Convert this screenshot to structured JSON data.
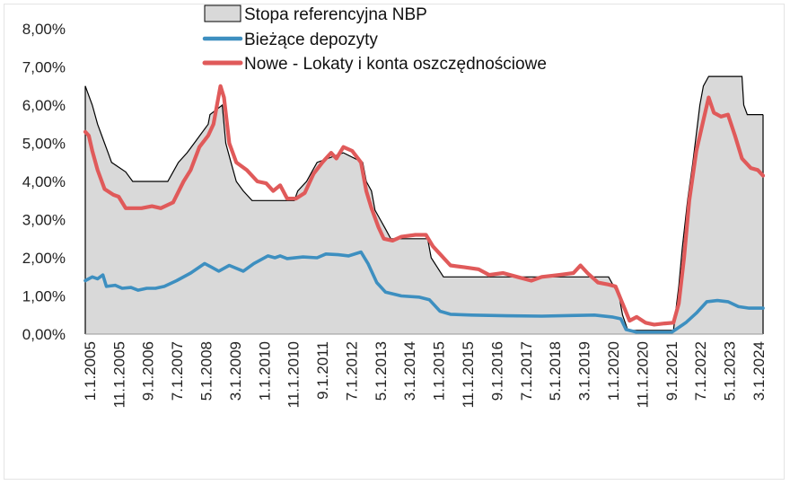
{
  "chart_data": {
    "type": "area",
    "title": "",
    "xlabel": "",
    "ylabel": "",
    "ylim": [
      0,
      8
    ],
    "y_ticks": [
      "0,00%",
      "1,00%",
      "2,00%",
      "3,00%",
      "4,00%",
      "5,00%",
      "6,00%",
      "7,00%",
      "8,00%"
    ],
    "x_tick_labels": [
      "1.1.2005",
      "11.1.2005",
      "9.1.2006",
      "7.1.2007",
      "5.1.2008",
      "3.1.2009",
      "1.1.2010",
      "11.1.2010",
      "9.1.2011",
      "7.1.2012",
      "5.1.2013",
      "3.1.2014",
      "1.1.2015",
      "11.1.2015",
      "9.1.2016",
      "7.1.2017",
      "5.1.2018",
      "3.1.2019",
      "1.1.2020",
      "11.1.2020",
      "9.1.2021",
      "7.1.2022",
      "5.1.2023",
      "3.1.2024"
    ],
    "grid": false,
    "legend_position": "top",
    "series": [
      {
        "name": "Stopa referencyjna NBP",
        "style": "area",
        "fill_color": "#d9d9d9",
        "line_color": "#000000",
        "points": [
          [
            2005.0,
            6.5
          ],
          [
            2005.2,
            6.0
          ],
          [
            2005.35,
            5.5
          ],
          [
            2005.55,
            5.0
          ],
          [
            2005.65,
            4.75
          ],
          [
            2005.75,
            4.5
          ],
          [
            2006.15,
            4.25
          ],
          [
            2006.35,
            4.0
          ],
          [
            2007.35,
            4.0
          ],
          [
            2007.5,
            4.25
          ],
          [
            2007.65,
            4.5
          ],
          [
            2007.9,
            4.75
          ],
          [
            2008.1,
            5.0
          ],
          [
            2008.3,
            5.25
          ],
          [
            2008.5,
            5.5
          ],
          [
            2008.55,
            5.75
          ],
          [
            2008.9,
            6.0
          ],
          [
            2009.0,
            5.0
          ],
          [
            2009.15,
            4.5
          ],
          [
            2009.3,
            4.0
          ],
          [
            2009.5,
            3.75
          ],
          [
            2009.75,
            3.5
          ],
          [
            2010.95,
            3.5
          ],
          [
            2011.05,
            3.75
          ],
          [
            2011.3,
            4.0
          ],
          [
            2011.45,
            4.25
          ],
          [
            2011.6,
            4.5
          ],
          [
            2012.35,
            4.75
          ],
          [
            2012.9,
            4.5
          ],
          [
            2013.0,
            4.0
          ],
          [
            2013.15,
            3.75
          ],
          [
            2013.25,
            3.25
          ],
          [
            2013.4,
            3.0
          ],
          [
            2013.55,
            2.75
          ],
          [
            2013.7,
            2.5
          ],
          [
            2014.75,
            2.5
          ],
          [
            2014.85,
            2.0
          ],
          [
            2015.2,
            1.5
          ],
          [
            2019.9,
            1.5
          ],
          [
            2020.2,
            1.0
          ],
          [
            2020.3,
            0.5
          ],
          [
            2020.45,
            0.1
          ],
          [
            2021.75,
            0.1
          ],
          [
            2021.8,
            0.5
          ],
          [
            2021.9,
            1.25
          ],
          [
            2022.0,
            2.25
          ],
          [
            2022.15,
            3.5
          ],
          [
            2022.3,
            4.5
          ],
          [
            2022.4,
            5.25
          ],
          [
            2022.5,
            6.0
          ],
          [
            2022.6,
            6.5
          ],
          [
            2022.75,
            6.75
          ],
          [
            2023.7,
            6.75
          ],
          [
            2023.75,
            6.0
          ],
          [
            2023.85,
            5.75
          ],
          [
            2024.3,
            5.75
          ]
        ]
      },
      {
        "name": "Bieżące depozyty",
        "style": "line",
        "color": "#3d8fc0",
        "points": [
          [
            2005.0,
            1.4
          ],
          [
            2005.2,
            1.5
          ],
          [
            2005.35,
            1.45
          ],
          [
            2005.5,
            1.55
          ],
          [
            2005.6,
            1.25
          ],
          [
            2005.85,
            1.28
          ],
          [
            2006.05,
            1.2
          ],
          [
            2006.3,
            1.22
          ],
          [
            2006.5,
            1.15
          ],
          [
            2006.75,
            1.2
          ],
          [
            2007.0,
            1.2
          ],
          [
            2007.25,
            1.25
          ],
          [
            2007.6,
            1.4
          ],
          [
            2008.0,
            1.6
          ],
          [
            2008.4,
            1.85
          ],
          [
            2008.6,
            1.75
          ],
          [
            2008.8,
            1.65
          ],
          [
            2009.1,
            1.8
          ],
          [
            2009.5,
            1.65
          ],
          [
            2009.8,
            1.85
          ],
          [
            2010.2,
            2.05
          ],
          [
            2010.4,
            2.0
          ],
          [
            2010.55,
            2.05
          ],
          [
            2010.75,
            1.98
          ],
          [
            2011.2,
            2.02
          ],
          [
            2011.6,
            2.0
          ],
          [
            2011.85,
            2.1
          ],
          [
            2012.2,
            2.08
          ],
          [
            2012.5,
            2.05
          ],
          [
            2012.85,
            2.15
          ],
          [
            2013.05,
            1.85
          ],
          [
            2013.3,
            1.35
          ],
          [
            2013.55,
            1.1
          ],
          [
            2014.0,
            1.0
          ],
          [
            2014.5,
            0.97
          ],
          [
            2014.8,
            0.9
          ],
          [
            2015.1,
            0.6
          ],
          [
            2015.4,
            0.52
          ],
          [
            2016.0,
            0.5
          ],
          [
            2017.0,
            0.48
          ],
          [
            2018.0,
            0.47
          ],
          [
            2019.0,
            0.49
          ],
          [
            2019.5,
            0.5
          ],
          [
            2020.0,
            0.45
          ],
          [
            2020.25,
            0.4
          ],
          [
            2020.4,
            0.12
          ],
          [
            2020.7,
            0.05
          ],
          [
            2021.7,
            0.05
          ],
          [
            2022.1,
            0.3
          ],
          [
            2022.4,
            0.55
          ],
          [
            2022.7,
            0.85
          ],
          [
            2023.0,
            0.88
          ],
          [
            2023.3,
            0.85
          ],
          [
            2023.6,
            0.72
          ],
          [
            2023.9,
            0.68
          ],
          [
            2024.3,
            0.68
          ]
        ]
      },
      {
        "name": "Nowe - Lokaty i konta oszczędnościowe",
        "style": "line",
        "color": "#e05a5a",
        "points": [
          [
            2005.0,
            5.3
          ],
          [
            2005.1,
            5.2
          ],
          [
            2005.2,
            4.8
          ],
          [
            2005.35,
            4.3
          ],
          [
            2005.55,
            3.8
          ],
          [
            2005.8,
            3.65
          ],
          [
            2005.95,
            3.6
          ],
          [
            2006.15,
            3.3
          ],
          [
            2006.6,
            3.3
          ],
          [
            2006.9,
            3.35
          ],
          [
            2007.15,
            3.3
          ],
          [
            2007.5,
            3.45
          ],
          [
            2007.8,
            4.0
          ],
          [
            2008.0,
            4.3
          ],
          [
            2008.25,
            4.9
          ],
          [
            2008.5,
            5.2
          ],
          [
            2008.65,
            5.5
          ],
          [
            2008.85,
            6.5
          ],
          [
            2008.95,
            6.2
          ],
          [
            2009.1,
            5.0
          ],
          [
            2009.3,
            4.5
          ],
          [
            2009.6,
            4.3
          ],
          [
            2009.9,
            4.0
          ],
          [
            2010.15,
            3.95
          ],
          [
            2010.35,
            3.75
          ],
          [
            2010.55,
            3.9
          ],
          [
            2010.75,
            3.55
          ],
          [
            2011.0,
            3.55
          ],
          [
            2011.25,
            3.7
          ],
          [
            2011.5,
            4.2
          ],
          [
            2011.75,
            4.5
          ],
          [
            2012.0,
            4.75
          ],
          [
            2012.15,
            4.6
          ],
          [
            2012.35,
            4.9
          ],
          [
            2012.6,
            4.8
          ],
          [
            2012.85,
            4.5
          ],
          [
            2013.0,
            3.75
          ],
          [
            2013.15,
            3.3
          ],
          [
            2013.35,
            2.8
          ],
          [
            2013.5,
            2.5
          ],
          [
            2013.75,
            2.45
          ],
          [
            2014.0,
            2.55
          ],
          [
            2014.4,
            2.6
          ],
          [
            2014.7,
            2.6
          ],
          [
            2014.9,
            2.3
          ],
          [
            2015.1,
            2.1
          ],
          [
            2015.4,
            1.8
          ],
          [
            2015.8,
            1.75
          ],
          [
            2016.2,
            1.7
          ],
          [
            2016.5,
            1.55
          ],
          [
            2016.9,
            1.6
          ],
          [
            2017.3,
            1.5
          ],
          [
            2017.7,
            1.4
          ],
          [
            2018.0,
            1.5
          ],
          [
            2018.5,
            1.55
          ],
          [
            2018.9,
            1.6
          ],
          [
            2019.1,
            1.8
          ],
          [
            2019.3,
            1.6
          ],
          [
            2019.6,
            1.35
          ],
          [
            2019.9,
            1.3
          ],
          [
            2020.1,
            1.25
          ],
          [
            2020.3,
            0.8
          ],
          [
            2020.5,
            0.35
          ],
          [
            2020.7,
            0.45
          ],
          [
            2020.95,
            0.3
          ],
          [
            2021.2,
            0.25
          ],
          [
            2021.5,
            0.28
          ],
          [
            2021.75,
            0.3
          ],
          [
            2021.9,
            0.8
          ],
          [
            2022.05,
            2.0
          ],
          [
            2022.2,
            3.5
          ],
          [
            2022.4,
            4.8
          ],
          [
            2022.6,
            5.6
          ],
          [
            2022.75,
            6.2
          ],
          [
            2022.9,
            5.8
          ],
          [
            2023.1,
            5.7
          ],
          [
            2023.3,
            5.75
          ],
          [
            2023.5,
            5.2
          ],
          [
            2023.7,
            4.6
          ],
          [
            2023.95,
            4.35
          ],
          [
            2024.15,
            4.3
          ],
          [
            2024.3,
            4.15
          ]
        ]
      }
    ]
  }
}
